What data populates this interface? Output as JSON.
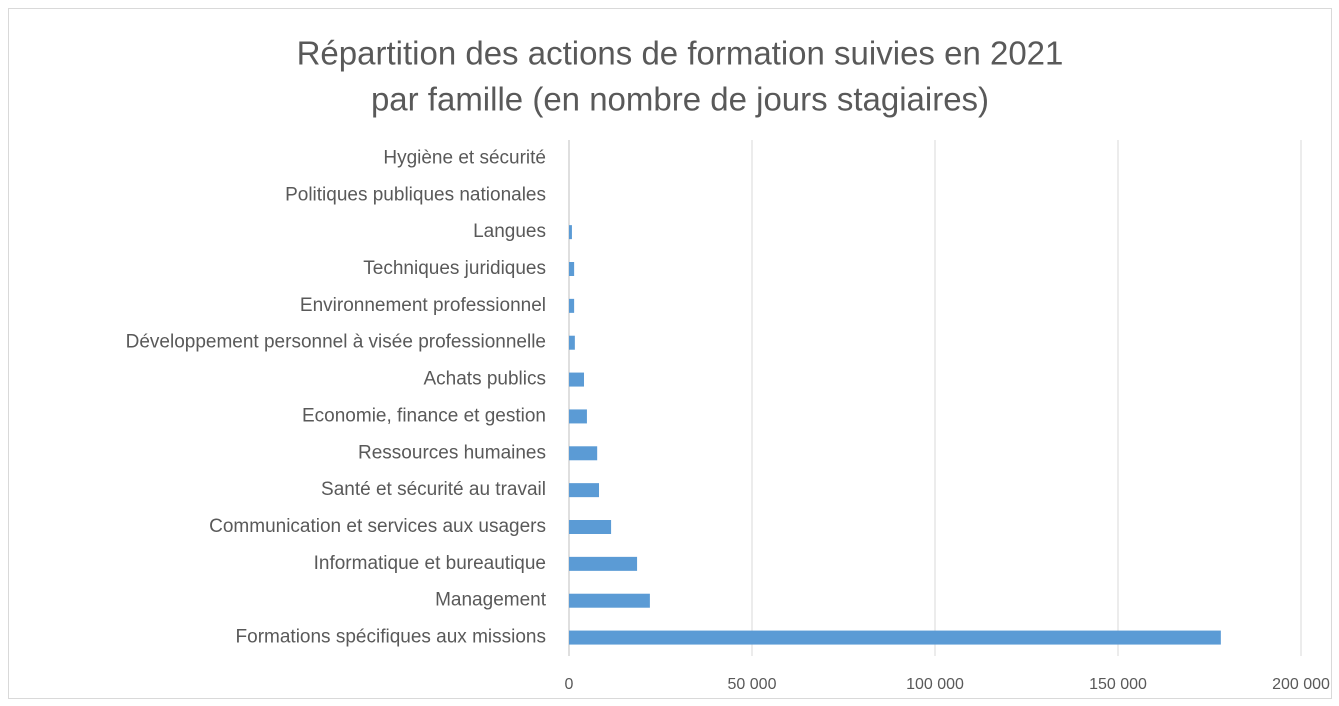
{
  "chart_data": {
    "type": "bar",
    "orientation": "horizontal",
    "title": [
      "Répartition des actions de formation suivies en 2021",
      "par famille (en nombre de jours stagiaires)"
    ],
    "categories": [
      "Hygiène et sécurité",
      "Politiques publiques nationales",
      "Langues",
      "Techniques juridiques",
      "Environnement professionnel",
      "Développement personnel à visée professionnelle",
      "Achats publics",
      "Economie, finance et gestion",
      "Ressources humaines",
      "Santé et sécurité au travail",
      "Communication et services aux usagers",
      "Informatique et bureautique",
      "Management",
      "Formations spécifiques aux missions"
    ],
    "values": [
      0,
      0,
      800,
      1400,
      1400,
      1600,
      4100,
      4900,
      7700,
      8200,
      11500,
      18600,
      22100,
      178100
    ],
    "color": "#5b9bd5",
    "xlim": [
      0,
      200000
    ],
    "xticks": [
      0,
      {
        "value": 50000,
        "label": "50 000"
      },
      {
        "value": 100000,
        "label": "100 000"
      },
      {
        "value": 150000,
        "label": "150 000"
      },
      {
        "value": 200000,
        "label": "200 000"
      }
    ],
    "grid": true
  }
}
